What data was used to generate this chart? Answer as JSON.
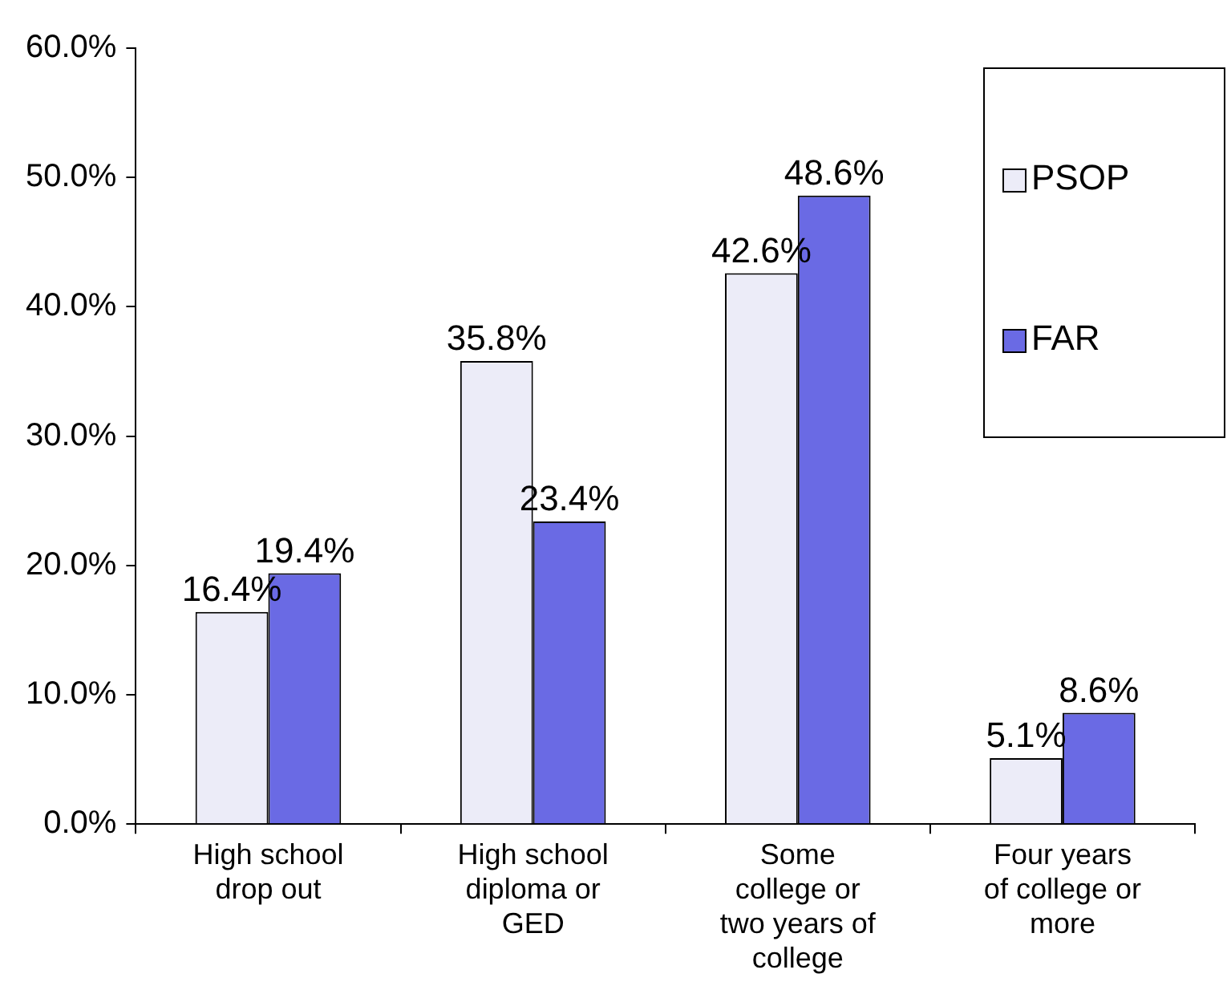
{
  "chart_data": {
    "type": "bar",
    "categories": [
      "High school drop out",
      "High school diploma or GED",
      "Some college or two years of college",
      "Four years of college or more"
    ],
    "series": [
      {
        "name": "PSOP",
        "color": "#ececf8",
        "values": [
          16.4,
          35.8,
          42.6,
          5.1
        ],
        "value_labels": [
          "16.4%",
          "35.8%",
          "42.6%",
          "5.1%"
        ]
      },
      {
        "name": "FAR",
        "color": "#6a6ae4",
        "values": [
          19.4,
          23.4,
          48.6,
          8.6
        ],
        "value_labels": [
          "19.4%",
          "23.4%",
          "48.6%",
          "8.6%"
        ]
      }
    ],
    "ylim": [
      0,
      60
    ],
    "yticks": [
      {
        "value": 0,
        "label": "0.0%"
      },
      {
        "value": 10,
        "label": "10.0%"
      },
      {
        "value": 20,
        "label": "20.0%"
      },
      {
        "value": 30,
        "label": "30.0%"
      },
      {
        "value": 40,
        "label": "40.0%"
      },
      {
        "value": 50,
        "label": "50.0%"
      },
      {
        "value": 60,
        "label": "60.0%"
      }
    ],
    "grid": false,
    "legend": "top right"
  }
}
